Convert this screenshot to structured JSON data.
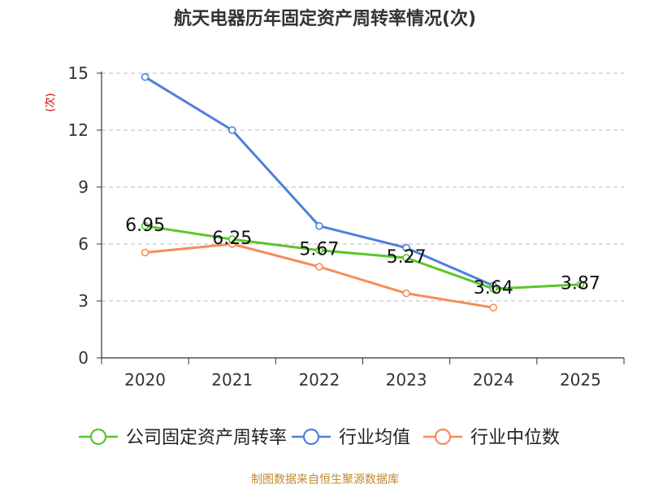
{
  "chart_data": {
    "type": "line",
    "title": "航天电器历年固定资产周转率情况(次)",
    "ylabel": "(次)",
    "xlabel": "",
    "categories": [
      "2020",
      "2021",
      "2022",
      "2023",
      "2024",
      "2025"
    ],
    "ylim": [
      0,
      15
    ],
    "yticks": [
      0,
      3,
      6,
      9,
      12,
      15
    ],
    "grid": true,
    "legend_position": "bottom",
    "series": [
      {
        "name": "公司固定资产周转率",
        "color": "#5ac52b",
        "values": [
          6.95,
          6.25,
          5.67,
          5.27,
          3.64,
          3.87
        ],
        "labels": [
          "6.95",
          "6.25",
          "5.67",
          "5.27",
          "3.64",
          "3.87"
        ]
      },
      {
        "name": "行业均值",
        "color": "#4f7fdc",
        "values": [
          14.8,
          12.0,
          6.95,
          5.8,
          3.8,
          null
        ]
      },
      {
        "name": "行业中位数",
        "color": "#f78b5a",
        "values": [
          5.55,
          6.0,
          4.8,
          3.4,
          2.65,
          null
        ]
      }
    ],
    "source": "制图数据来自恒生聚源数据库"
  },
  "colors": {
    "ylabel": "#cc0000",
    "source": "#c08a2a"
  }
}
